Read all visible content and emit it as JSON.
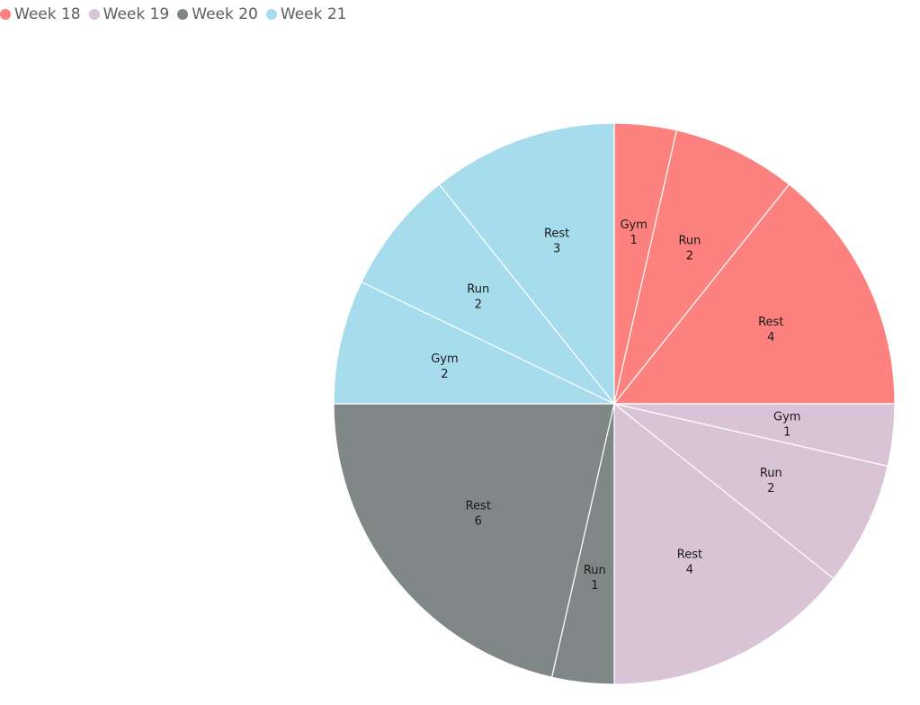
{
  "legend": [
    {
      "label": "Week 18",
      "color": "#fd817e"
    },
    {
      "label": "Week 19",
      "color": "#d9c3d6"
    },
    {
      "label": "Week 20",
      "color": "#808787"
    },
    {
      "label": "Week 21",
      "color": "#a6dcec"
    }
  ],
  "chart_data": {
    "type": "pie",
    "title": "",
    "legend_position": "top-left",
    "slices": [
      {
        "series": "Week 18",
        "category": "Gym",
        "value": 1,
        "color": "#fd817e"
      },
      {
        "series": "Week 18",
        "category": "Run",
        "value": 2,
        "color": "#fd817e"
      },
      {
        "series": "Week 18",
        "category": "Rest",
        "value": 4,
        "color": "#fd817e"
      },
      {
        "series": "Week 19",
        "category": "Gym",
        "value": 1,
        "color": "#d9c3d6"
      },
      {
        "series": "Week 19",
        "category": "Run",
        "value": 2,
        "color": "#d9c3d6"
      },
      {
        "series": "Week 19",
        "category": "Rest",
        "value": 4,
        "color": "#d9c3d6"
      },
      {
        "series": "Week 20",
        "category": "Run",
        "value": 1,
        "color": "#808787"
      },
      {
        "series": "Week 20",
        "category": "Rest",
        "value": 6,
        "color": "#808787"
      },
      {
        "series": "Week 21",
        "category": "Gym",
        "value": 2,
        "color": "#a6dcec"
      },
      {
        "series": "Week 21",
        "category": "Run",
        "value": 2,
        "color": "#a6dcec"
      },
      {
        "series": "Week 21",
        "category": "Rest",
        "value": 3,
        "color": "#a6dcec"
      }
    ]
  }
}
